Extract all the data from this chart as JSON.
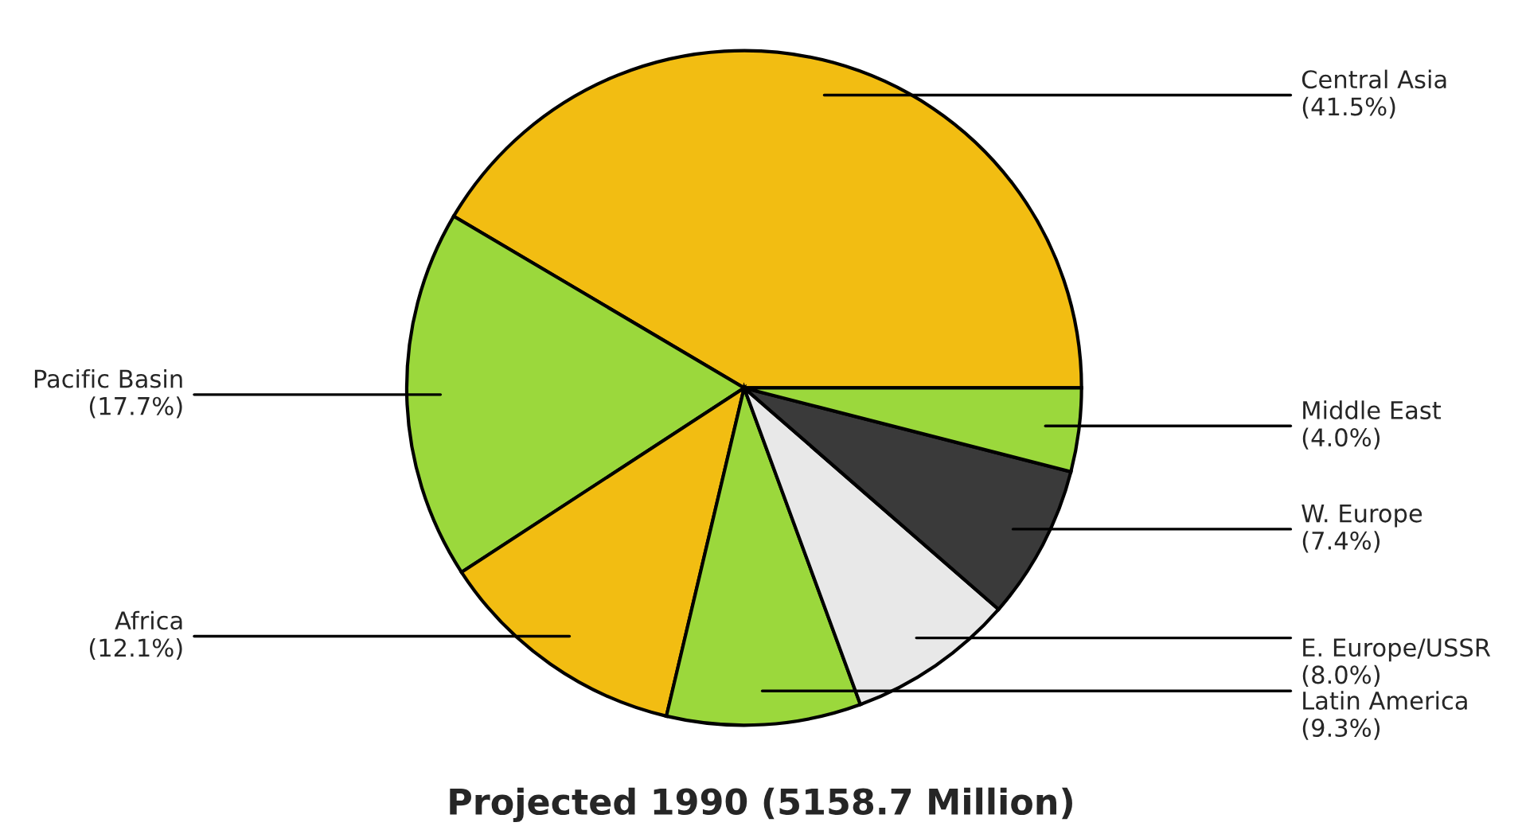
{
  "chart_data": {
    "type": "pie",
    "title": "Projected 1990 (5158.7 Million)",
    "categories": [
      "Central Asia",
      "Pacific Basin",
      "Africa",
      "Latin America",
      "E. Europe/USSR",
      "W. Europe",
      "Middle East"
    ],
    "values": [
      41.5,
      17.7,
      12.1,
      9.3,
      8.0,
      7.4,
      4.0
    ],
    "value_labels": [
      "(41.5%)",
      "(17.7%)",
      "(12.1%)",
      "(9.3%)",
      "(8.0%)",
      "(7.4%)",
      "(4.0%)"
    ],
    "colors": [
      "#f2bd12",
      "#9bd83c",
      "#f2bd12",
      "#9bd83c",
      "#e8e8e8",
      "#3a3a3a",
      "#9bd83c"
    ],
    "legend": false
  }
}
